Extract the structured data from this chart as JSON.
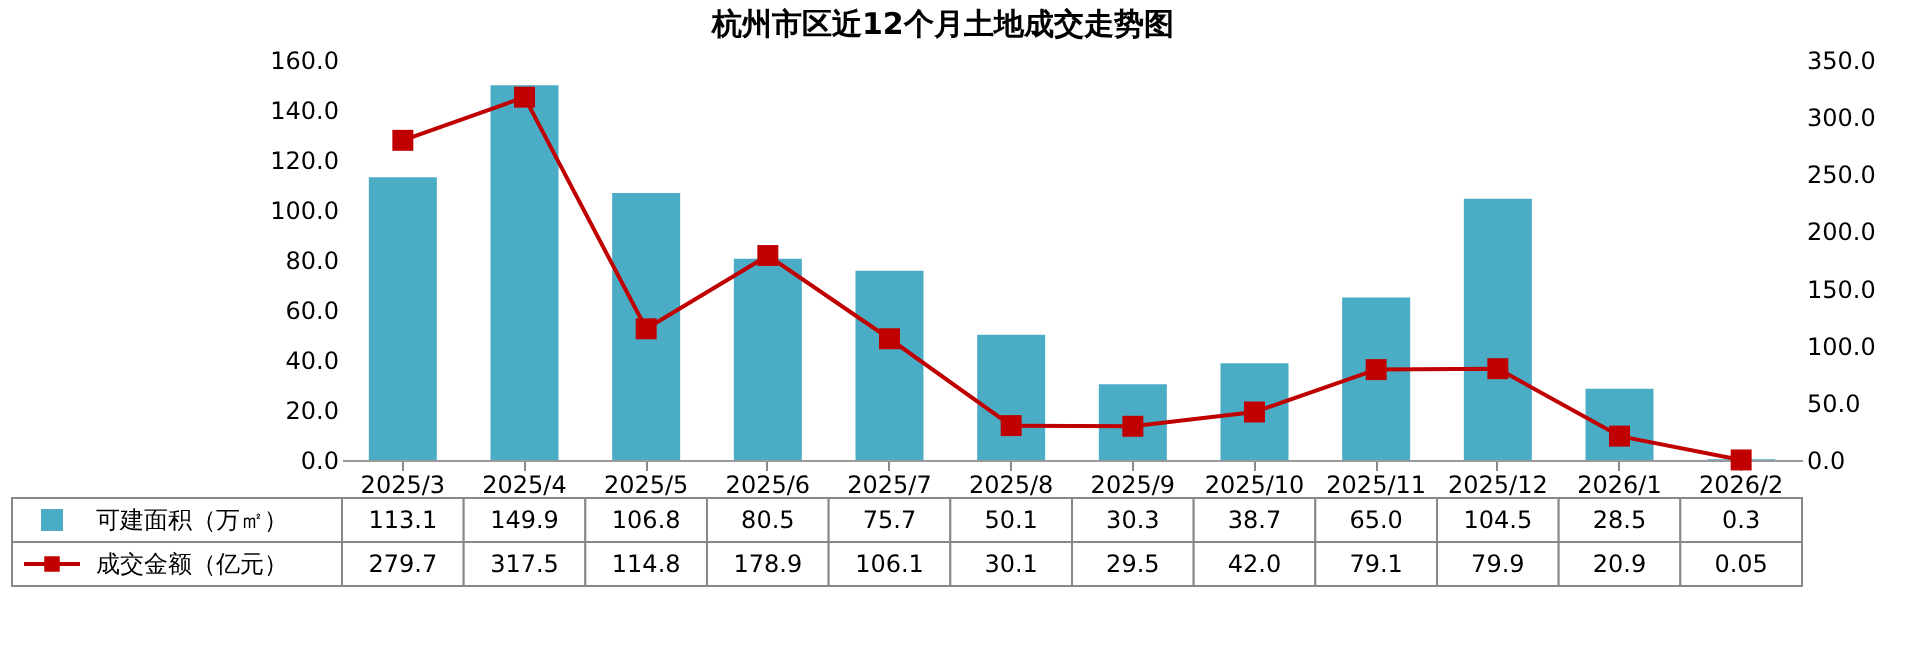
{
  "chart_data": {
    "type": "bar",
    "title": "杭州市区近12个月土地成交走势图",
    "categories": [
      "2025/3",
      "2025/4",
      "2025/5",
      "2025/6",
      "2025/7",
      "2025/8",
      "2025/9",
      "2025/10",
      "2025/11",
      "2025/12",
      "2026/1",
      "2026/2"
    ],
    "series": [
      {
        "name": "可建面积（万㎡）",
        "color": "#4bacc6",
        "values": [
          113.1,
          149.9,
          106.8,
          80.5,
          75.7,
          50.1,
          30.3,
          38.7,
          65.0,
          104.5,
          28.5,
          0.3
        ],
        "value_labels": [
          "113.1",
          "149.9",
          "106.8",
          "80.5",
          "75.7",
          "50.1",
          "30.3",
          "38.7",
          "65.0",
          "104.5",
          "28.5",
          "0.3"
        ]
      },
      {
        "name": "成交金额（亿元）",
        "type": "line",
        "axis": "y2",
        "color": "#c00000",
        "marker": "square",
        "values": [
          279.7,
          317.5,
          114.8,
          178.9,
          106.1,
          30.1,
          29.5,
          42.0,
          79.1,
          79.9,
          20.9,
          0.05
        ],
        "value_labels": [
          "279.7",
          "317.5",
          "114.8",
          "178.9",
          "106.1",
          "30.1",
          "29.5",
          "42.0",
          "79.1",
          "79.9",
          "20.9",
          "0.05"
        ]
      }
    ],
    "ylim": [
      0,
      160
    ],
    "yticks": [
      {
        "value": 0,
        "label": "0.0"
      },
      {
        "value": 20,
        "label": "20.0"
      },
      {
        "value": 40,
        "label": "40.0"
      },
      {
        "value": 60,
        "label": "60.0"
      },
      {
        "value": 80,
        "label": "80.0"
      },
      {
        "value": 100,
        "label": "100.0"
      },
      {
        "value": 120,
        "label": "120.0"
      },
      {
        "value": 140,
        "label": "140.0"
      },
      {
        "value": 160,
        "label": "160.0"
      }
    ],
    "y2lim": [
      0,
      350
    ],
    "y2ticks": [
      {
        "value": 0,
        "label": "0.0"
      },
      {
        "value": 50,
        "label": "50.0"
      },
      {
        "value": 100,
        "label": "100.0"
      },
      {
        "value": 150,
        "label": "150.0"
      },
      {
        "value": 200,
        "label": "200.0"
      },
      {
        "value": 250,
        "label": "250.0"
      },
      {
        "value": 300,
        "label": "300.0"
      },
      {
        "value": 350,
        "label": "350.0"
      }
    ],
    "legend": "bottom",
    "grid": false
  }
}
